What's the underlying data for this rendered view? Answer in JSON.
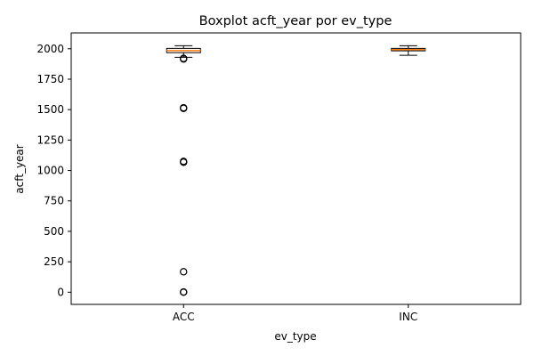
{
  "chart_data": {
    "type": "boxplot",
    "title": "Boxplot acft_year por ev_type",
    "xlabel": "ev_type",
    "ylabel": "acft_year",
    "categories": [
      "ACC",
      "INC"
    ],
    "ylim": [
      -100,
      2130
    ],
    "yticks": [
      0,
      250,
      500,
      750,
      1000,
      1250,
      1500,
      1750,
      2000
    ],
    "grid": false,
    "boxes": [
      {
        "category": "ACC",
        "whisker_low": 1930,
        "q1": 1968,
        "median": 1985,
        "q3": 2003,
        "whisker_high": 2025,
        "outliers": [
          1916,
          1921,
          1510,
          1515,
          1068,
          1075,
          168,
          0,
          2
        ]
      },
      {
        "category": "INC",
        "whisker_low": 1946,
        "q1": 1983,
        "median": 1993,
        "q3": 2003,
        "whisker_high": 2025,
        "outliers": []
      }
    ],
    "colors": {
      "box_edge": "#000000",
      "median": "#ff7f0e",
      "outlier_edge": "#000000"
    }
  }
}
